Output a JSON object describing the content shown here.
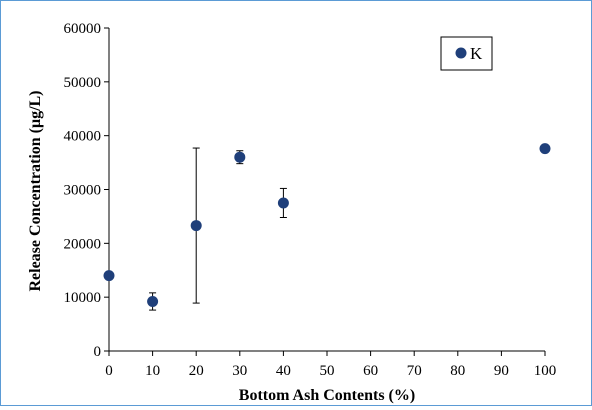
{
  "chart_data": {
    "type": "scatter",
    "title": "",
    "xlabel": "Bottom Ash Contents (%)",
    "ylabel": "Release Concentration (μg/L)",
    "xlim": [
      0,
      100
    ],
    "ylim": [
      0,
      60000
    ],
    "x_ticks": [
      0,
      10,
      20,
      30,
      40,
      50,
      60,
      70,
      80,
      90,
      100
    ],
    "y_ticks": [
      0,
      10000,
      20000,
      30000,
      40000,
      50000,
      60000
    ],
    "grid": false,
    "legend_position": "top-right",
    "series": [
      {
        "name": "K",
        "color": "#1f3f7a",
        "marker": "circle",
        "points": [
          {
            "x": 0,
            "y": 14000
          },
          {
            "x": 10,
            "y": 9200,
            "err_low": 7600,
            "err_high": 10800
          },
          {
            "x": 20,
            "y": 23300,
            "err_low": 8900,
            "err_high": 37700
          },
          {
            "x": 30,
            "y": 36000,
            "err_low": 34800,
            "err_high": 37200
          },
          {
            "x": 40,
            "y": 27500,
            "err_low": 24800,
            "err_high": 30200
          },
          {
            "x": 100,
            "y": 37600
          }
        ]
      }
    ]
  }
}
